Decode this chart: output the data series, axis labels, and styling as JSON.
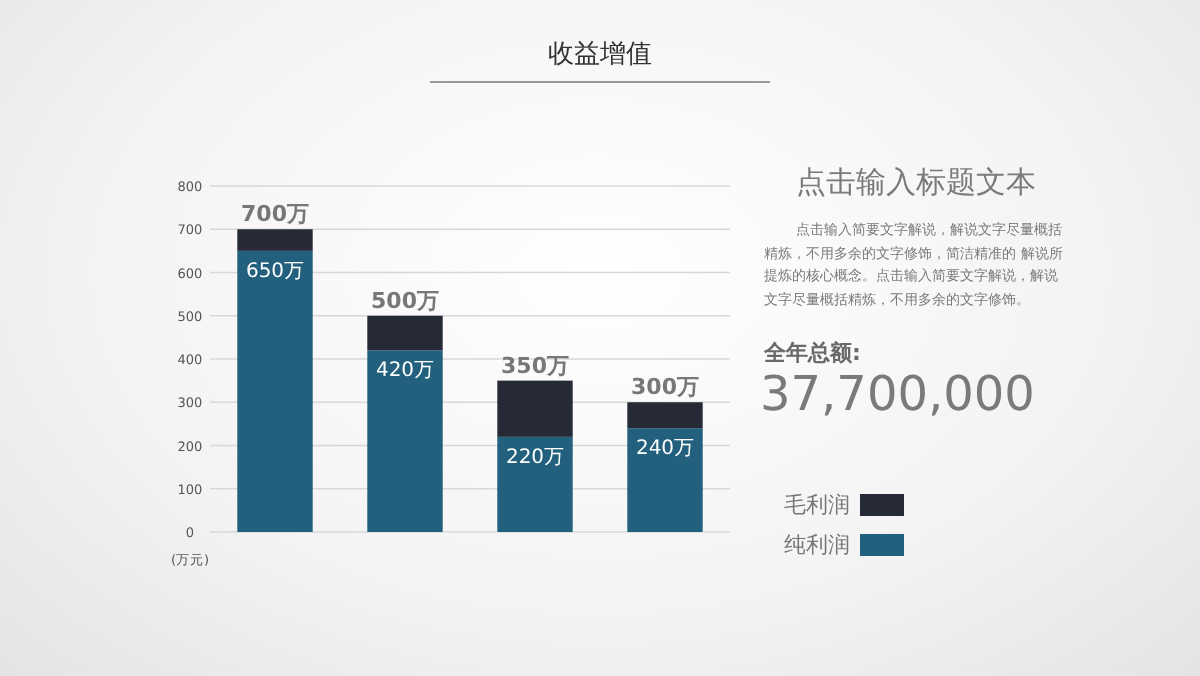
{
  "chart_data": [
    {
      "type": "bar",
      "title": "收益增值",
      "ylabel": "(万元)",
      "categories": [
        null,
        null,
        null,
        null
      ],
      "stacked": true,
      "series": [
        {
          "name": "纯利润",
          "color": "#22607e",
          "values": [
            650,
            420,
            220,
            240
          ],
          "value_labels": [
            "650万",
            "420万",
            "220万",
            "240万"
          ]
        },
        {
          "name": "毛利润",
          "color": "#262a36",
          "values": [
            50,
            80,
            130,
            60
          ]
        }
      ],
      "totals": [
        "700万",
        "500万",
        "350万",
        "300万"
      ],
      "ylim": [
        0,
        800
      ],
      "yticks": [
        0,
        100,
        200,
        300,
        400,
        500,
        600,
        700,
        800
      ],
      "grid": "y",
      "legend": "bottom right"
    },
    {
      "type": "other",
      "title": "点击输入标题文本",
      "annotations": [
        "点击输入简要文字解说，解说文字尽量概括精炼，不用多余的文字修饰，简洁精准的 解说所提炼的核心概念。点击输入简要文字解说，解说文字尽量概括精炼，不用多余的文字修饰。",
        "全年总额:",
        "37,700,000"
      ]
    }
  ]
}
